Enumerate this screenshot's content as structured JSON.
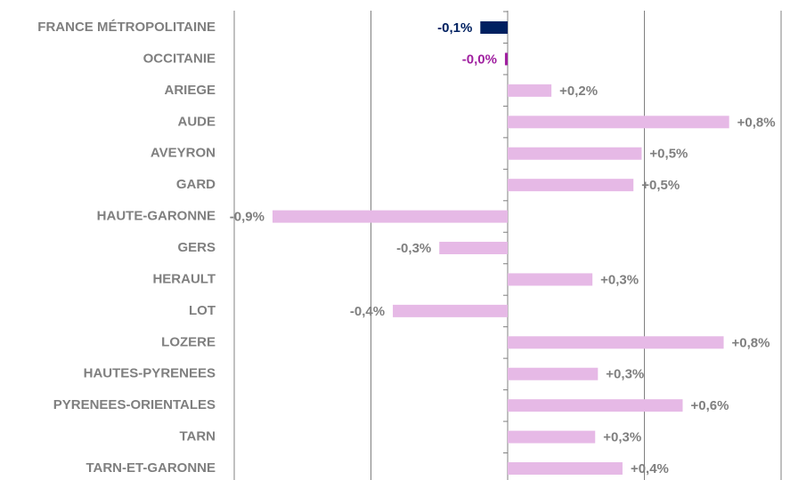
{
  "chart_data": {
    "type": "barh",
    "categories": [
      "FRANCE MÉTROPOLITAINE",
      "OCCITANIE",
      "ARIEGE",
      "AUDE",
      "AVEYRON",
      "GARD",
      "HAUTE-GARONNE",
      "GERS",
      "HERAULT",
      "LOT",
      "LOZERE",
      "HAUTES-PYRENEES",
      "PYRENEES-ORIENTALES",
      "TARN",
      "TARN-ET-GARONNE"
    ],
    "values": [
      -0.1,
      -0.01,
      0.16,
      0.81,
      0.49,
      0.46,
      -0.86,
      -0.25,
      0.31,
      -0.42,
      0.79,
      0.33,
      0.64,
      0.32,
      0.42
    ],
    "value_labels": [
      "-0,1%",
      "-0,0%",
      "+0,2%",
      "+0,8%",
      "+0,5%",
      "+0,5%",
      "-0,9%",
      "-0,3%",
      "+0,3%",
      "-0,4%",
      "+0,8%",
      "+0,3%",
      "+0,6%",
      "+0,3%",
      "+0,4%"
    ],
    "colors": [
      "#002060",
      "#a020a0",
      "#e6b9e6",
      "#e6b9e6",
      "#e6b9e6",
      "#e6b9e6",
      "#e6b9e6",
      "#e6b9e6",
      "#e6b9e6",
      "#e6b9e6",
      "#e6b9e6",
      "#e6b9e6",
      "#e6b9e6",
      "#e6b9e6",
      "#e6b9e6"
    ],
    "label_colors": [
      "#002060",
      "#a020a0",
      "#7f7f7f",
      "#7f7f7f",
      "#7f7f7f",
      "#7f7f7f",
      "#7f7f7f",
      "#7f7f7f",
      "#7f7f7f",
      "#7f7f7f",
      "#7f7f7f",
      "#7f7f7f",
      "#7f7f7f",
      "#7f7f7f",
      "#7f7f7f"
    ],
    "xlim": [
      -1,
      1
    ],
    "xticks": [
      -1,
      -0.5,
      0,
      0.5,
      1
    ],
    "grid": true
  }
}
